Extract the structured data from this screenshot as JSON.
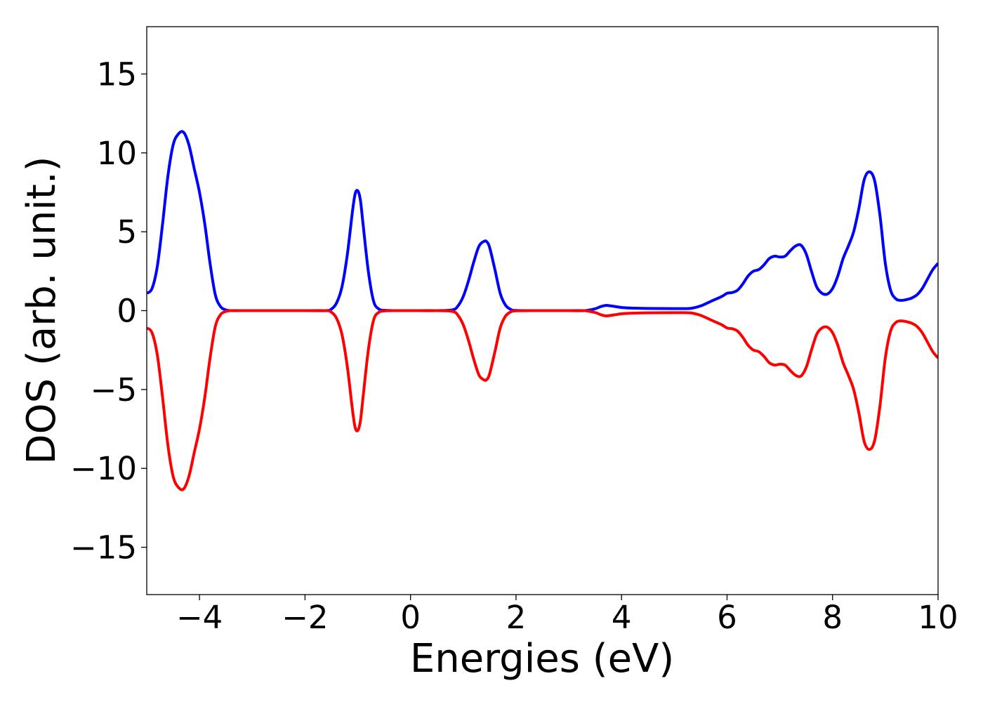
{
  "chart_data": {
    "type": "line",
    "xlabel": "Energies (eV)",
    "ylabel": "DOS (arb. unit.)",
    "xlim": [
      -5,
      10
    ],
    "ylim": [
      -18,
      18
    ],
    "grid": false,
    "x_ticks": [
      -4,
      -2,
      0,
      2,
      4,
      6,
      8,
      10
    ],
    "x_tick_labels": [
      "−4",
      "−2",
      "0",
      "2",
      "4",
      "6",
      "8",
      "10"
    ],
    "y_ticks": [
      15,
      10,
      5,
      0,
      -5,
      -10,
      -15
    ],
    "y_tick_labels": [
      "15",
      "10",
      "5",
      "0",
      "−5",
      "−10",
      "−15"
    ],
    "series": [
      {
        "color": "#0000ff",
        "x": [
          -5.0,
          -4.9,
          -4.8,
          -4.7,
          -4.6,
          -4.5,
          -4.4,
          -4.3,
          -4.2,
          -4.1,
          -4.0,
          -3.9,
          -3.8,
          -3.7,
          -3.6,
          -3.5,
          -3.4,
          -3.2,
          -3.0,
          -2.0,
          -1.6,
          -1.5,
          -1.4,
          -1.3,
          -1.2,
          -1.1,
          -1.05,
          -1.0,
          -0.95,
          -0.9,
          -0.8,
          -0.7,
          -0.6,
          -0.5,
          -0.3,
          0.0,
          0.5,
          0.8,
          0.9,
          1.0,
          1.1,
          1.2,
          1.3,
          1.4,
          1.45,
          1.5,
          1.6,
          1.7,
          1.8,
          1.9,
          2.0,
          2.5,
          3.0,
          3.3,
          3.5,
          3.6,
          3.7,
          3.8,
          3.9,
          4.0,
          4.2,
          4.5,
          5.0,
          5.3,
          5.5,
          5.7,
          5.9,
          6.0,
          6.1,
          6.2,
          6.3,
          6.4,
          6.5,
          6.6,
          6.7,
          6.8,
          6.9,
          7.0,
          7.1,
          7.2,
          7.3,
          7.4,
          7.5,
          7.6,
          7.7,
          7.8,
          7.9,
          8.0,
          8.1,
          8.2,
          8.3,
          8.4,
          8.5,
          8.6,
          8.7,
          8.8,
          8.9,
          9.0,
          9.1,
          9.2,
          9.3,
          9.4,
          9.5,
          9.6,
          9.7,
          9.8,
          9.9,
          10.0
        ],
        "y": [
          1.1,
          1.4,
          2.8,
          5.5,
          8.5,
          10.5,
          11.2,
          11.3,
          10.5,
          9.0,
          7.5,
          5.5,
          3.0,
          1.0,
          0.25,
          0.05,
          0.0,
          0.0,
          0.0,
          0.0,
          0.0,
          0.1,
          0.5,
          1.5,
          3.5,
          6.3,
          7.4,
          7.6,
          7.0,
          5.5,
          2.5,
          0.6,
          0.1,
          0.02,
          0.0,
          0.0,
          0.0,
          0.05,
          0.3,
          0.9,
          1.9,
          3.1,
          4.1,
          4.4,
          4.35,
          4.0,
          2.6,
          1.1,
          0.35,
          0.08,
          0.01,
          0.0,
          0.0,
          0.0,
          0.12,
          0.25,
          0.33,
          0.3,
          0.25,
          0.2,
          0.16,
          0.14,
          0.13,
          0.14,
          0.3,
          0.6,
          0.9,
          1.1,
          1.15,
          1.3,
          1.7,
          2.2,
          2.5,
          2.6,
          2.9,
          3.3,
          3.45,
          3.4,
          3.45,
          3.8,
          4.1,
          4.15,
          3.6,
          2.5,
          1.5,
          1.1,
          1.05,
          1.4,
          2.2,
          3.3,
          4.1,
          5.0,
          6.5,
          8.3,
          8.8,
          8.2,
          6.0,
          3.0,
          1.3,
          0.75,
          0.65,
          0.7,
          0.8,
          1.0,
          1.4,
          2.0,
          2.6,
          3.0
        ]
      },
      {
        "color": "#ff0000",
        "x": [
          -5.0,
          -4.9,
          -4.8,
          -4.7,
          -4.6,
          -4.5,
          -4.4,
          -4.3,
          -4.2,
          -4.1,
          -4.0,
          -3.9,
          -3.8,
          -3.7,
          -3.6,
          -3.5,
          -3.4,
          -3.2,
          -3.0,
          -2.0,
          -1.6,
          -1.5,
          -1.4,
          -1.3,
          -1.2,
          -1.1,
          -1.05,
          -1.0,
          -0.95,
          -0.9,
          -0.8,
          -0.7,
          -0.6,
          -0.5,
          -0.3,
          0.0,
          0.5,
          0.8,
          0.9,
          1.0,
          1.1,
          1.2,
          1.3,
          1.4,
          1.45,
          1.5,
          1.6,
          1.7,
          1.8,
          1.9,
          2.0,
          2.5,
          3.0,
          3.3,
          3.5,
          3.6,
          3.7,
          3.8,
          3.9,
          4.0,
          4.2,
          4.5,
          5.0,
          5.3,
          5.5,
          5.7,
          5.9,
          6.0,
          6.1,
          6.2,
          6.3,
          6.4,
          6.5,
          6.6,
          6.7,
          6.8,
          6.9,
          7.0,
          7.1,
          7.2,
          7.3,
          7.4,
          7.5,
          7.6,
          7.7,
          7.8,
          7.9,
          8.0,
          8.1,
          8.2,
          8.3,
          8.4,
          8.5,
          8.6,
          8.7,
          8.8,
          8.9,
          9.0,
          9.1,
          9.2,
          9.3,
          9.4,
          9.5,
          9.6,
          9.7,
          9.8,
          9.9,
          10.0
        ],
        "y": [
          -1.1,
          -1.4,
          -2.8,
          -5.5,
          -8.5,
          -10.5,
          -11.2,
          -11.3,
          -10.5,
          -9.0,
          -7.5,
          -5.5,
          -3.0,
          -1.0,
          -0.25,
          -0.05,
          0.0,
          0.0,
          0.0,
          0.0,
          0.0,
          -0.1,
          -0.5,
          -1.5,
          -3.5,
          -6.3,
          -7.4,
          -7.6,
          -7.0,
          -5.5,
          -2.5,
          -0.6,
          -0.1,
          -0.02,
          0.0,
          0.0,
          0.0,
          -0.05,
          -0.3,
          -0.9,
          -1.9,
          -3.1,
          -4.1,
          -4.4,
          -4.35,
          -4.0,
          -2.6,
          -1.1,
          -0.35,
          -0.08,
          -0.01,
          0.0,
          0.0,
          0.0,
          -0.12,
          -0.25,
          -0.33,
          -0.3,
          -0.25,
          -0.2,
          -0.16,
          -0.14,
          -0.13,
          -0.14,
          -0.3,
          -0.6,
          -0.9,
          -1.1,
          -1.15,
          -1.3,
          -1.7,
          -2.2,
          -2.5,
          -2.6,
          -2.9,
          -3.3,
          -3.45,
          -3.4,
          -3.45,
          -3.8,
          -4.1,
          -4.15,
          -3.6,
          -2.5,
          -1.5,
          -1.1,
          -1.05,
          -1.4,
          -2.2,
          -3.3,
          -4.1,
          -5.0,
          -6.5,
          -8.3,
          -8.8,
          -8.2,
          -6.0,
          -3.0,
          -1.3,
          -0.75,
          -0.65,
          -0.7,
          -0.8,
          -1.0,
          -1.4,
          -2.0,
          -2.6,
          -3.0
        ]
      }
    ]
  }
}
